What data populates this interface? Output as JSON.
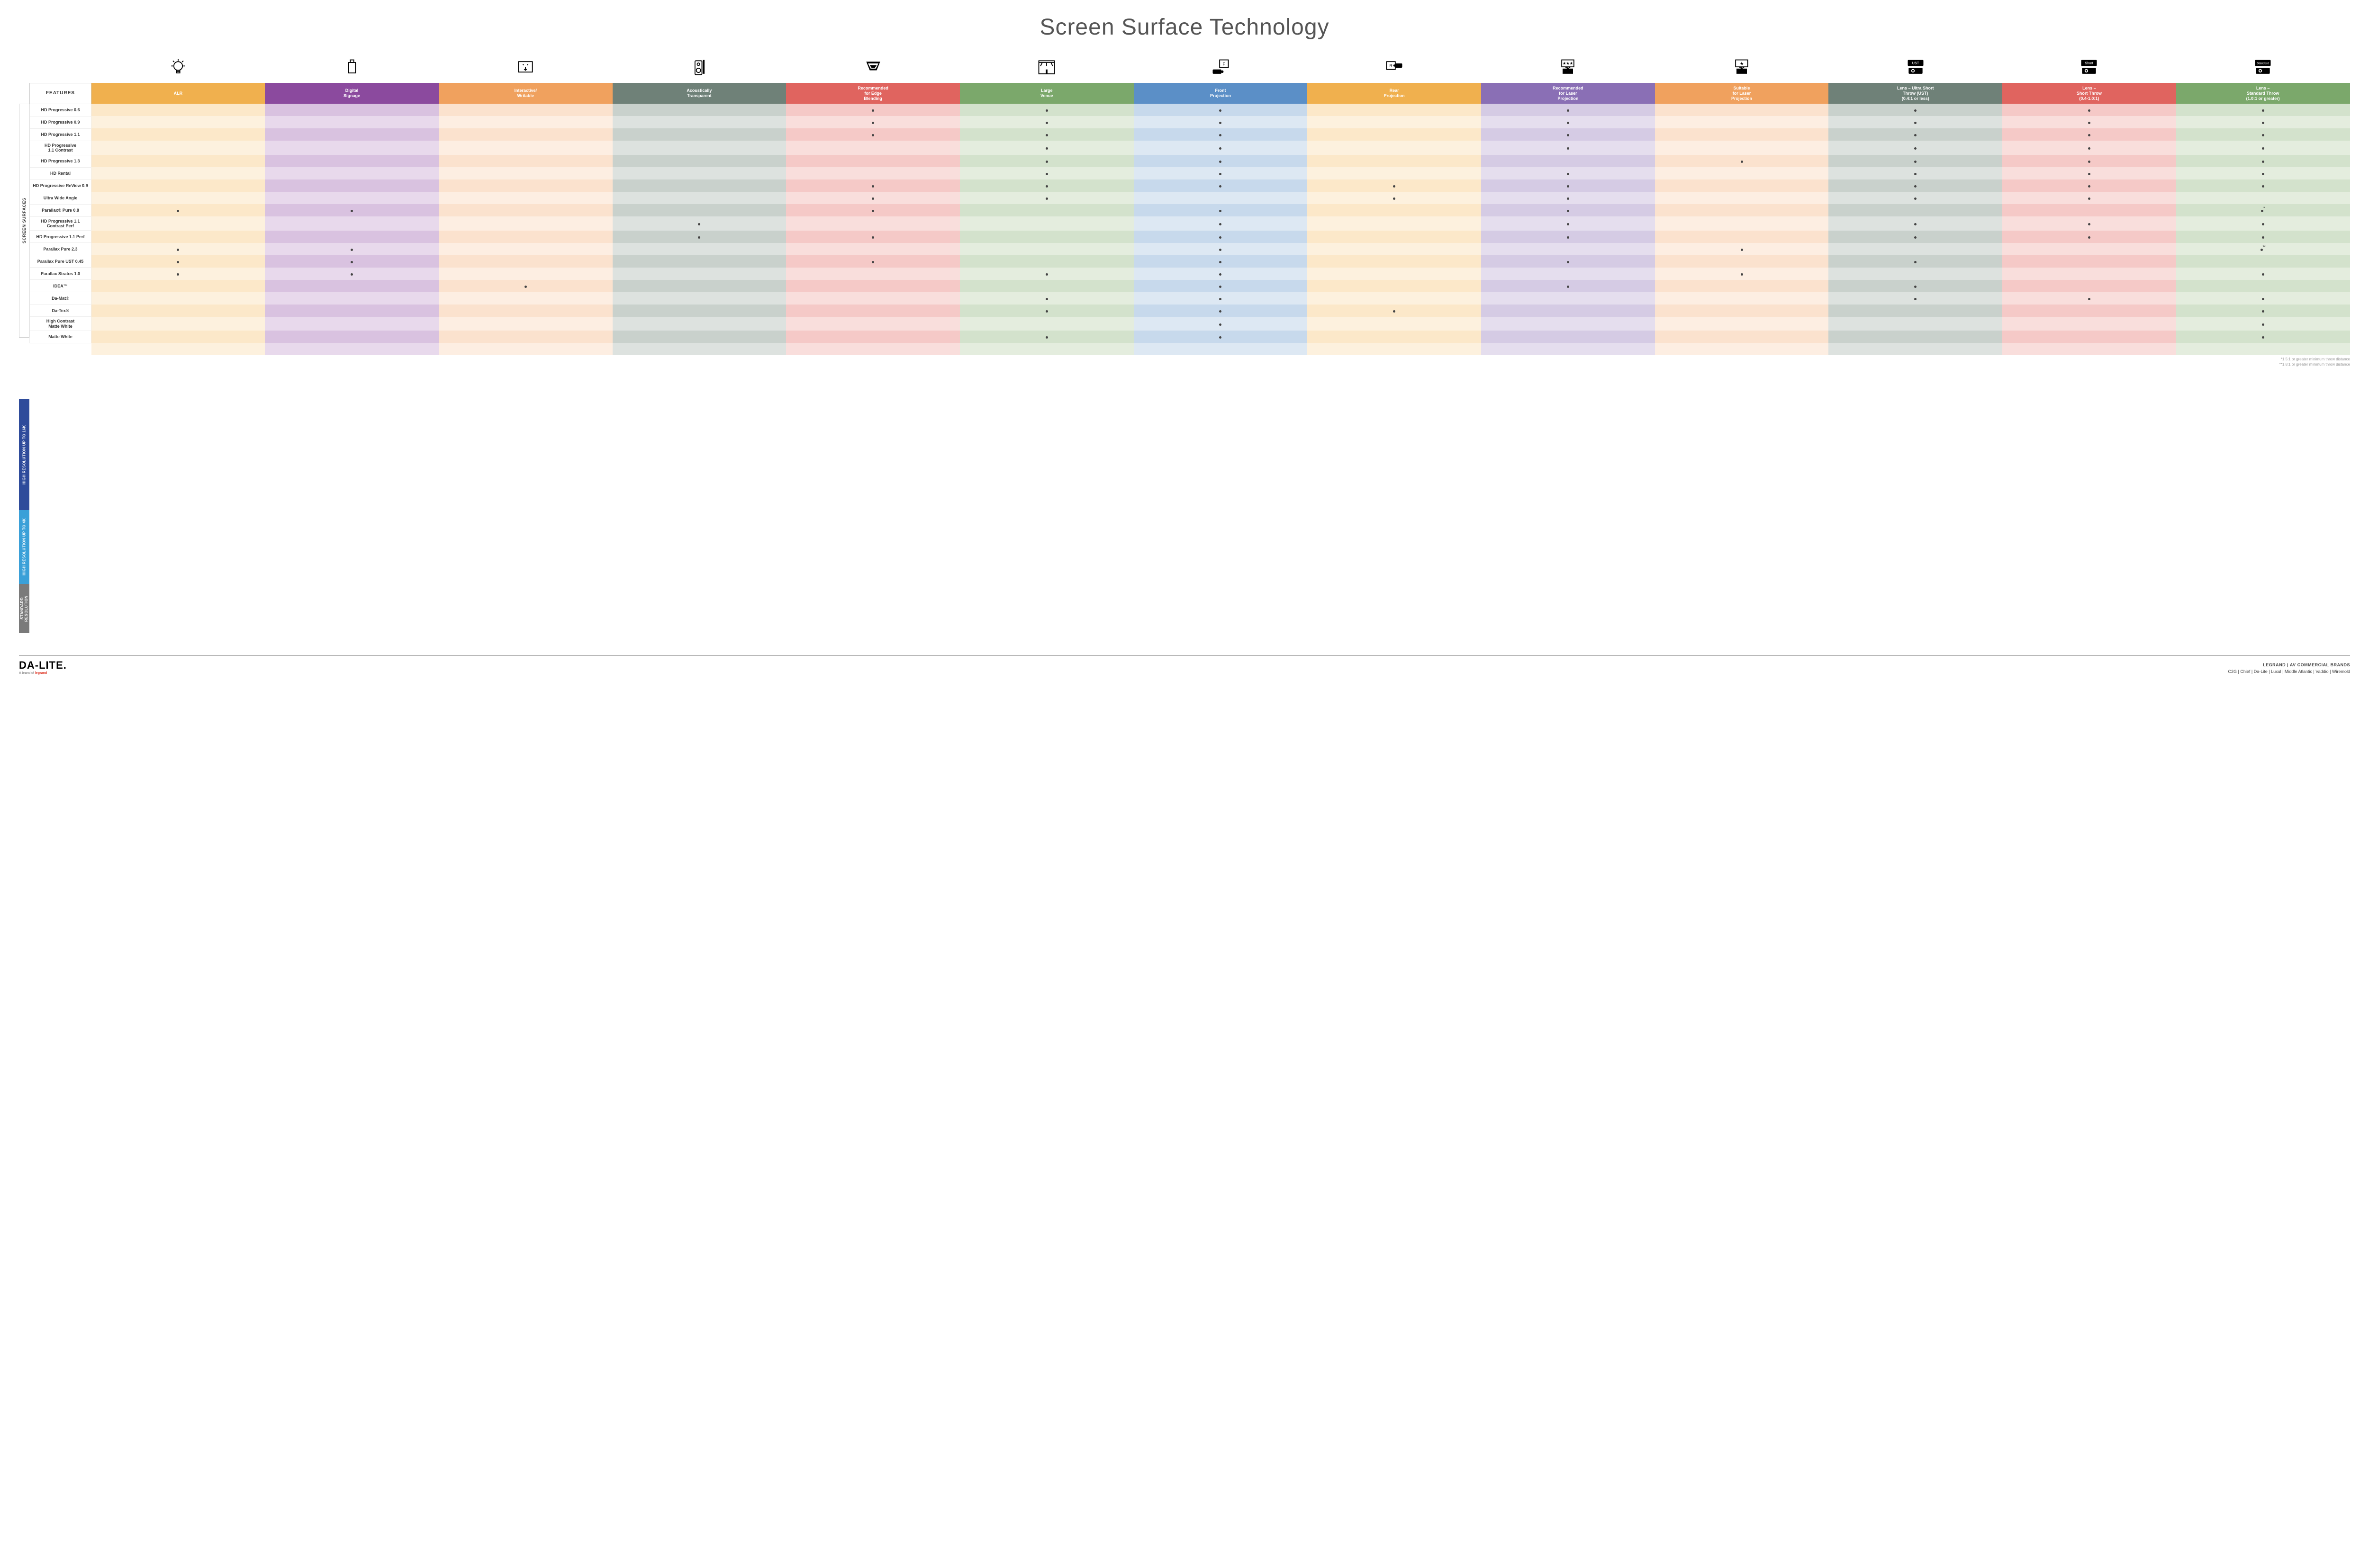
{
  "title": "Screen Surface Technology",
  "columns": [
    {
      "key": "alr",
      "label": "ALR",
      "color": "#f0b04e",
      "light": "#fce8c9",
      "lighter": "#fdf1de"
    },
    {
      "key": "digsig",
      "label": "Digital\nSignage",
      "color": "#8b4a9e",
      "light": "#d9c2e0",
      "lighter": "#e8d9ec"
    },
    {
      "key": "interact",
      "label": "Interactive/\nWritable",
      "color": "#f0a15e",
      "light": "#fbe2ce",
      "lighter": "#fdeee2"
    },
    {
      "key": "acoustic",
      "label": "Acoustically\nTransparent",
      "color": "#6f8178",
      "light": "#c9d1cc",
      "lighter": "#dde2df"
    },
    {
      "key": "edge",
      "label": "Recommended\nfor Edge\nBlending",
      "color": "#e0645f",
      "light": "#f5c9c7",
      "lighter": "#f9dedc"
    },
    {
      "key": "large",
      "label": "Large\nVenue",
      "color": "#7ba86b",
      "light": "#d3e2cc",
      "lighter": "#e4edde"
    },
    {
      "key": "front",
      "label": "Front\nProjection",
      "color": "#5b8fc7",
      "light": "#c7d9ec",
      "lighter": "#dde8f3"
    },
    {
      "key": "rear",
      "label": "Rear\nProjection",
      "color": "#f0b04e",
      "light": "#fce8c9",
      "lighter": "#fdf1de"
    },
    {
      "key": "reclaser",
      "label": "Recommended\nfor Laser\nProjection",
      "color": "#8a6fb5",
      "light": "#d5cbe4",
      "lighter": "#e5deee"
    },
    {
      "key": "suitlaser",
      "label": "Suitable\nfor Laser\nProjection",
      "color": "#f0a15e",
      "light": "#fbe2ce",
      "lighter": "#fdeee2"
    },
    {
      "key": "ust",
      "label": "Lens – Ultra Short\nThrow (UST)\n(0.4:1 or less)",
      "color": "#6f8178",
      "light": "#c9d1cc",
      "lighter": "#dde2df"
    },
    {
      "key": "short",
      "label": "Lens –\nShort Throw\n(0.4-1.0:1)",
      "color": "#e0645f",
      "light": "#f5c9c7",
      "lighter": "#f9dedc"
    },
    {
      "key": "std",
      "label": "Lens –\nStandard Throw\n(1.0:1 or greater)",
      "color": "#7ba86b",
      "light": "#d3e2cc",
      "lighter": "#e4edde"
    }
  ],
  "featuresLabel": "FEATURES",
  "sideLabel": "SCREEN SURFACES",
  "categories": [
    {
      "key": "hr16k",
      "label": "HIGH RESOLUTION UP TO 16K",
      "color": "#2e4b9b"
    },
    {
      "key": "hr4k",
      "label": "HIGH RESOLUTION UP TO 4K",
      "color": "#3aa0d8"
    },
    {
      "key": "sr",
      "label": "STANDARD\nRESOLUTION",
      "color": "#7a7a7a"
    }
  ],
  "rows": [
    {
      "cat": "hr16k",
      "label": "HD Progressive 0.6",
      "dots": {
        "edge": "•",
        "large": "•",
        "front": "•",
        "reclaser": "•",
        "ust": "•",
        "short": "•",
        "std": "•"
      }
    },
    {
      "cat": "hr16k",
      "label": "HD Progressive 0.9",
      "dots": {
        "edge": "•",
        "large": "•",
        "front": "•",
        "reclaser": "•",
        "ust": "•",
        "short": "•",
        "std": "•"
      }
    },
    {
      "cat": "hr16k",
      "label": "HD Progressive 1.1",
      "dots": {
        "edge": "•",
        "large": "•",
        "front": "•",
        "reclaser": "•",
        "ust": "•",
        "short": "•",
        "std": "•"
      }
    },
    {
      "cat": "hr16k",
      "label": "HD Progressive\n1.1 Contrast",
      "dots": {
        "large": "•",
        "front": "•",
        "reclaser": "•",
        "ust": "•",
        "short": "•",
        "std": "•"
      }
    },
    {
      "cat": "hr16k",
      "label": "HD Progressive 1.3",
      "dots": {
        "large": "•",
        "front": "•",
        "suitlaser": "•",
        "ust": "•",
        "short": "•",
        "std": "•"
      }
    },
    {
      "cat": "hr16k",
      "label": "HD Rental",
      "dots": {
        "large": "•",
        "front": "•",
        "reclaser": "•",
        "ust": "•",
        "short": "•",
        "std": "•"
      }
    },
    {
      "cat": "hr16k",
      "label": "HD Progressive ReView 0.9",
      "dots": {
        "edge": "•",
        "large": "•",
        "front": "•",
        "rear": "•",
        "reclaser": "•",
        "ust": "•",
        "short": "•",
        "std": "•"
      }
    },
    {
      "cat": "hr16k",
      "label": "Ultra Wide Angle",
      "dots": {
        "edge": "•",
        "large": "•",
        "rear": "•",
        "reclaser": "•",
        "ust": "•",
        "short": "•"
      }
    },
    {
      "cat": "hr16k",
      "label": "Parallax® Pure 0.8",
      "dots": {
        "alr": "•",
        "digsig": "•",
        "edge": "•",
        "front": "•",
        "reclaser": "•",
        "std": "•*"
      }
    },
    {
      "cat": "hr4k",
      "label": "HD Progressive 1.1\nContrast Perf",
      "dots": {
        "acoustic": "•",
        "front": "•",
        "reclaser": "•",
        "ust": "•",
        "short": "•",
        "std": "•"
      }
    },
    {
      "cat": "hr4k",
      "label": "HD Progressive 1.1 Perf",
      "dots": {
        "acoustic": "•",
        "edge": "•",
        "front": "•",
        "reclaser": "•",
        "ust": "•",
        "short": "•",
        "std": "•"
      }
    },
    {
      "cat": "hr4k",
      "label": "Parallax Pure 2.3",
      "dots": {
        "alr": "•",
        "digsig": "•",
        "front": "•",
        "suitlaser": "•",
        "std": "•**"
      }
    },
    {
      "cat": "hr4k",
      "label": "Parallax Pure UST 0.45",
      "dots": {
        "alr": "•",
        "digsig": "•",
        "edge": "•",
        "front": "•",
        "reclaser": "•",
        "ust": "•"
      }
    },
    {
      "cat": "hr4k",
      "label": "Parallax Stratos 1.0",
      "dots": {
        "alr": "•",
        "digsig": "•",
        "large": "•",
        "front": "•",
        "suitlaser": "•",
        "std": "•"
      }
    },
    {
      "cat": "hr4k",
      "label": "IDEA™",
      "dots": {
        "interact": "•",
        "front": "•",
        "reclaser": "•",
        "ust": "•"
      }
    },
    {
      "cat": "sr",
      "label": "Da-Mat®",
      "dots": {
        "large": "•",
        "front": "•",
        "ust": "•",
        "short": "•",
        "std": "•"
      }
    },
    {
      "cat": "sr",
      "label": "Da-Tex®",
      "dots": {
        "large": "•",
        "front": "•",
        "rear": "•",
        "std": "•"
      }
    },
    {
      "cat": "sr",
      "label": "High Contrast\nMatte White",
      "dots": {
        "front": "•",
        "std": "•"
      }
    },
    {
      "cat": "sr",
      "label": "Matte White",
      "dots": {
        "large": "•",
        "front": "•",
        "std": "•"
      }
    }
  ],
  "footnotes": [
    "*1.5:1 or greater minimum throw distance",
    "**1.8:1 or greater minimum throw distance"
  ],
  "footer": {
    "logo": "DA-LITE.",
    "logoSub": "A brand of ",
    "logoSubBrand": "legrand",
    "brandsTop": "LEGRAND | AV COMMERCIAL BRANDS",
    "brandsList": "C2G  |  Chief  |  Da-Lite  |  Luxul  |  Middle Atlantic  |  Vaddio  |  Wiremold"
  },
  "icons": [
    "bulb",
    "signage",
    "touch",
    "speaker",
    "venue",
    "stage",
    "front",
    "rear",
    "laser-rec",
    "laser-suit",
    "ust",
    "short",
    "standard"
  ]
}
